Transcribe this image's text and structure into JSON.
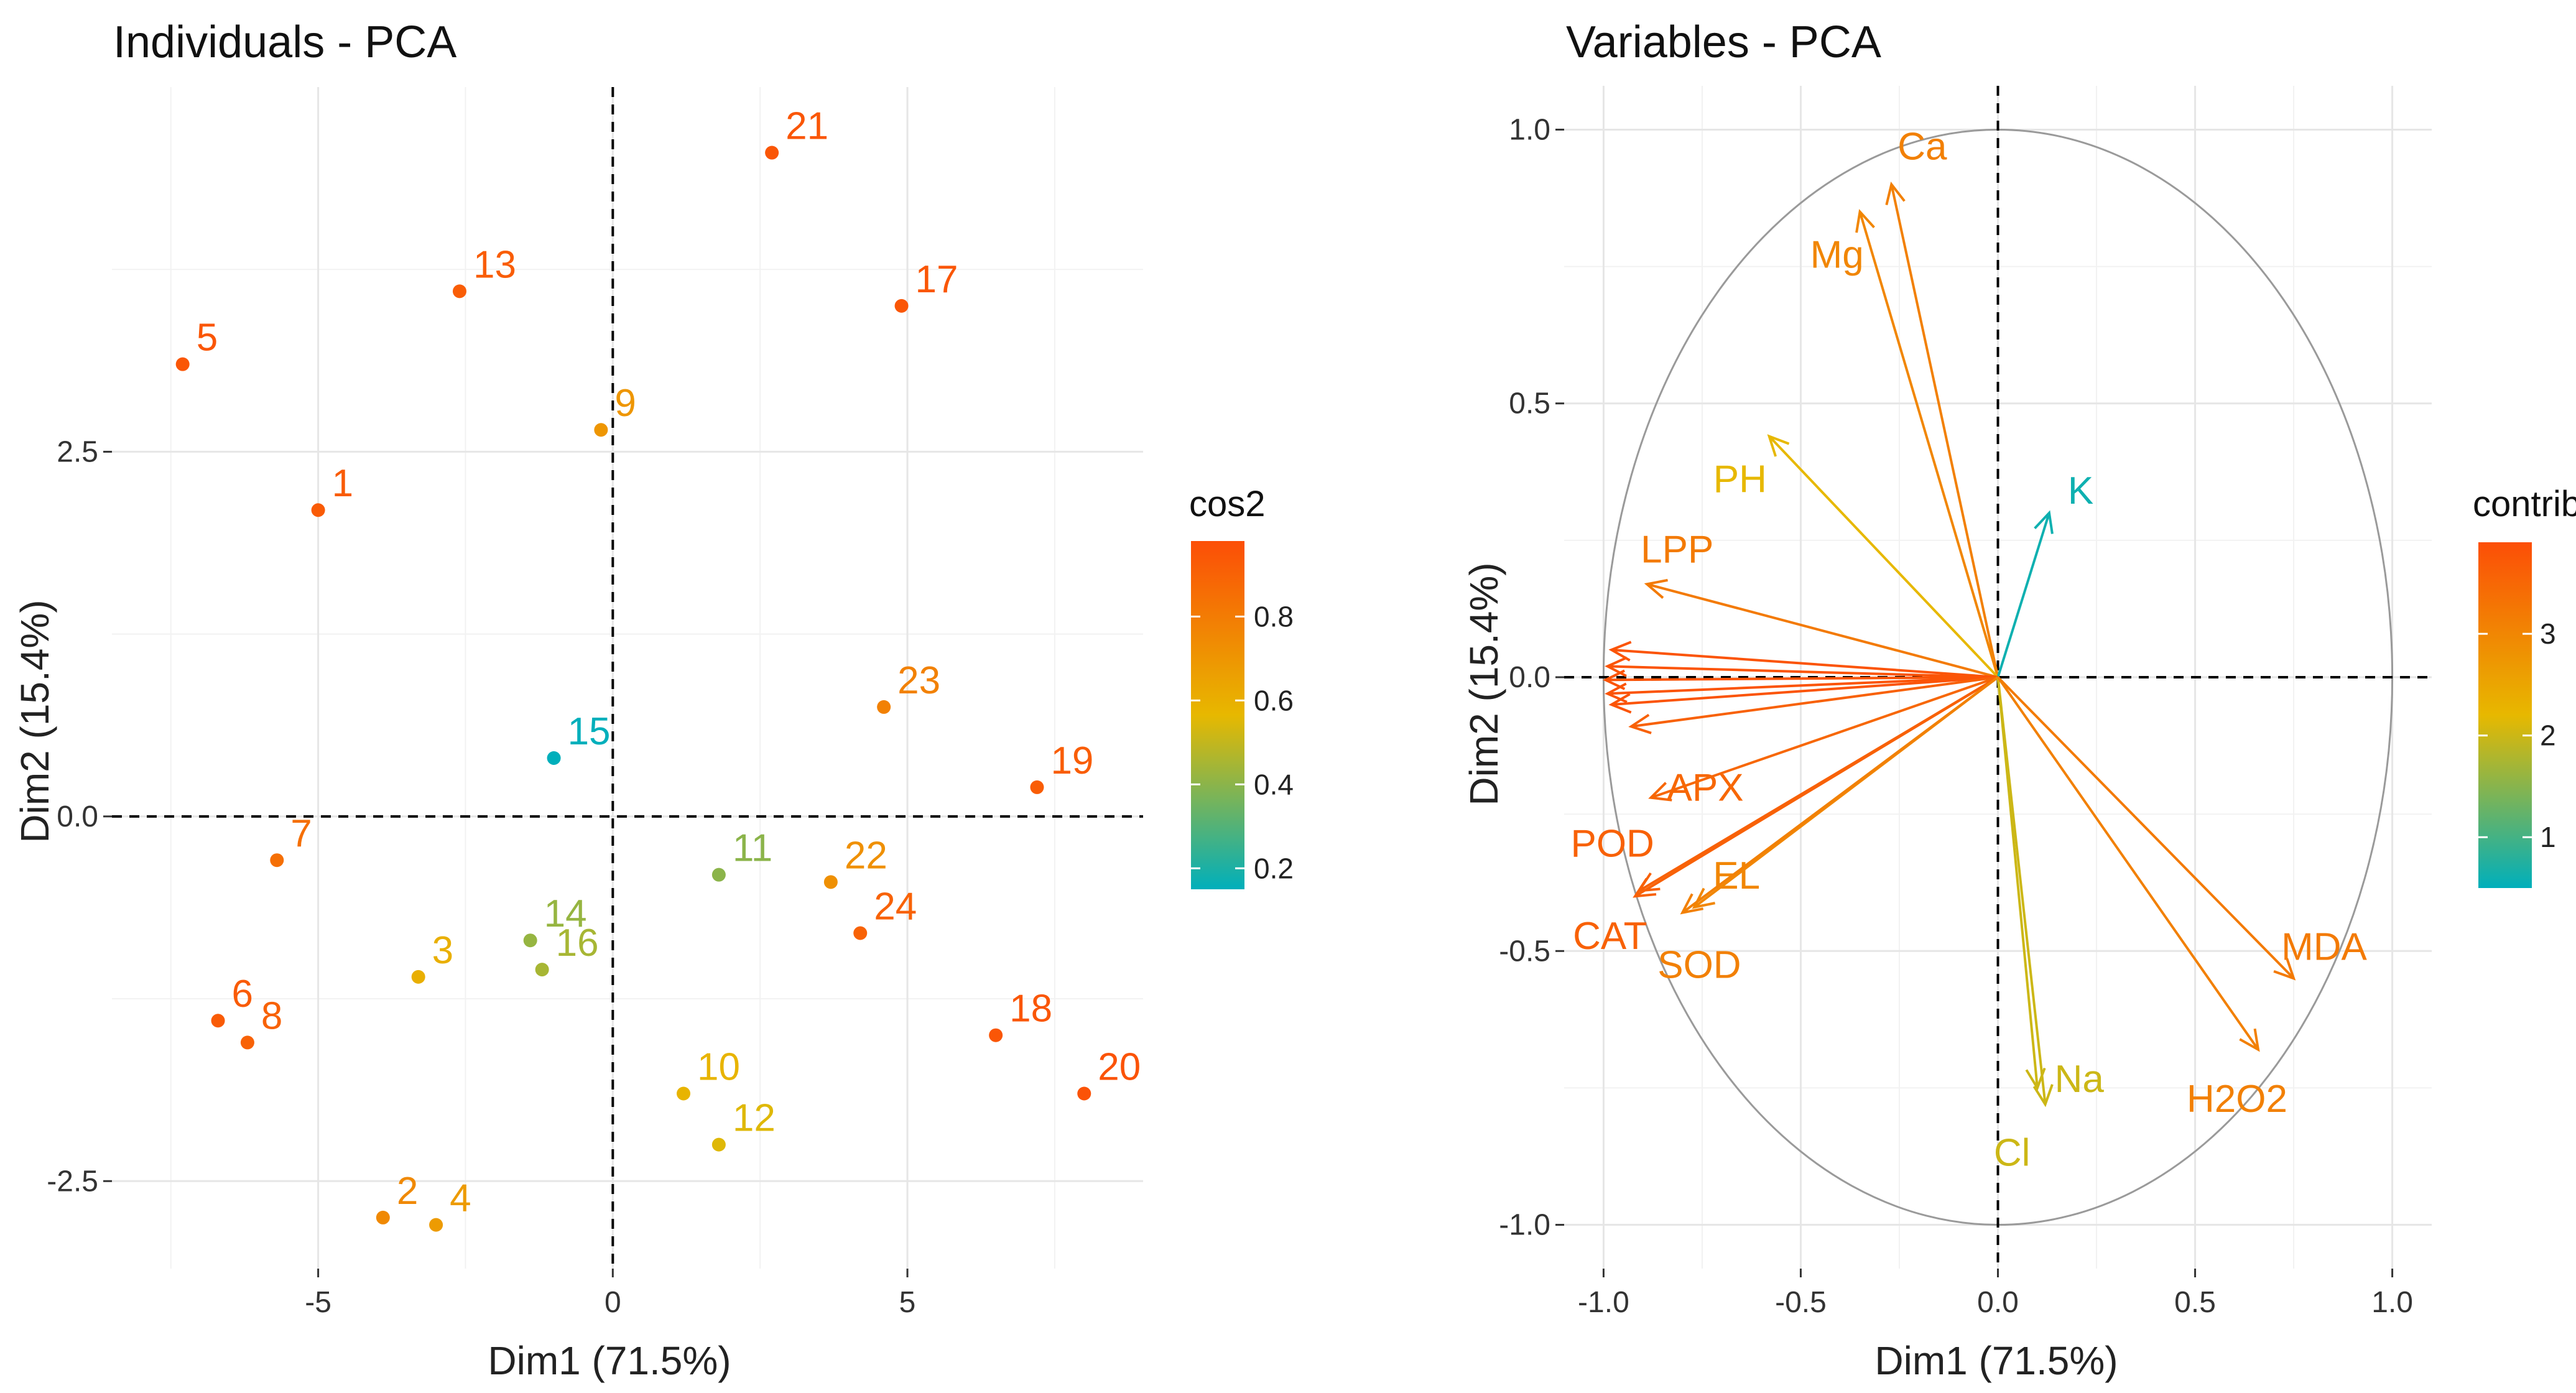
{
  "chart_data": [
    {
      "type": "scatter",
      "title": "Individuals - PCA",
      "xlabel": "Dim1 (71.5%)",
      "ylabel": "Dim2 (15.4%)",
      "xlim": [
        -8.5,
        9
      ],
      "ylim": [
        -3.1,
        5.0
      ],
      "xticks": [
        -5,
        0,
        5
      ],
      "yticks": [
        -2.5,
        0.0,
        2.5
      ],
      "xtick_labels": [
        "-5",
        "0",
        "5"
      ],
      "ytick_labels": [
        "-2.5",
        "0.0",
        "2.5"
      ],
      "grid": true,
      "color_by": "cos2",
      "legend": {
        "title": "cos2",
        "position": "right",
        "ticks": [
          0.8,
          0.6,
          0.4,
          0.2
        ],
        "tick_labels": [
          "0.8",
          "0.6",
          "0.4",
          "0.2"
        ],
        "range": [
          0.15,
          0.98
        ],
        "colors": [
          "#00AFBB",
          "#E7B800",
          "#FC4E07"
        ]
      },
      "points": [
        {
          "label": "1",
          "x": -5.0,
          "y": 2.1,
          "cos2": 0.93
        },
        {
          "label": "2",
          "x": -3.9,
          "y": -2.75,
          "cos2": 0.75
        },
        {
          "label": "3",
          "x": -3.3,
          "y": -1.1,
          "cos2": 0.6
        },
        {
          "label": "4",
          "x": -3.0,
          "y": -2.8,
          "cos2": 0.68
        },
        {
          "label": "5",
          "x": -7.3,
          "y": 3.1,
          "cos2": 0.95
        },
        {
          "label": "6",
          "x": -6.7,
          "y": -1.4,
          "cos2": 0.93
        },
        {
          "label": "7",
          "x": -5.7,
          "y": -0.3,
          "cos2": 0.85
        },
        {
          "label": "8",
          "x": -6.2,
          "y": -1.55,
          "cos2": 0.9
        },
        {
          "label": "9",
          "x": -0.2,
          "y": 2.65,
          "cos2": 0.7
        },
        {
          "label": "10",
          "x": 1.2,
          "y": -1.9,
          "cos2": 0.58
        },
        {
          "label": "11",
          "x": 1.8,
          "y": -0.4,
          "cos2": 0.4
        },
        {
          "label": "12",
          "x": 1.8,
          "y": -2.25,
          "cos2": 0.55
        },
        {
          "label": "13",
          "x": -2.6,
          "y": 3.6,
          "cos2": 0.92
        },
        {
          "label": "14",
          "x": -1.4,
          "y": -0.85,
          "cos2": 0.42
        },
        {
          "label": "15",
          "x": -1.0,
          "y": 0.4,
          "cos2": 0.15
        },
        {
          "label": "16",
          "x": -1.2,
          "y": -1.05,
          "cos2": 0.45
        },
        {
          "label": "17",
          "x": 4.9,
          "y": 3.5,
          "cos2": 0.95
        },
        {
          "label": "18",
          "x": 6.5,
          "y": -1.5,
          "cos2": 0.95
        },
        {
          "label": "19",
          "x": 7.2,
          "y": 0.2,
          "cos2": 0.92
        },
        {
          "label": "20",
          "x": 8.0,
          "y": -1.9,
          "cos2": 0.96
        },
        {
          "label": "21",
          "x": 2.7,
          "y": 4.55,
          "cos2": 0.95
        },
        {
          "label": "22",
          "x": 3.7,
          "y": -0.45,
          "cos2": 0.72
        },
        {
          "label": "23",
          "x": 4.6,
          "y": 0.75,
          "cos2": 0.78
        },
        {
          "label": "24",
          "x": 4.2,
          "y": -0.8,
          "cos2": 0.9
        }
      ]
    },
    {
      "type": "vector",
      "title": "Variables - PCA",
      "xlabel": "Dim1 (71.5%)",
      "ylabel": "Dim2 (15.4%)",
      "xlim": [
        -1.1,
        1.1
      ],
      "ylim": [
        -1.08,
        1.08
      ],
      "xticks": [
        -1.0,
        -0.5,
        0.0,
        0.5,
        1.0
      ],
      "yticks": [
        -1.0,
        -0.5,
        0.0,
        0.5,
        1.0
      ],
      "xtick_labels": [
        "-1.0",
        "-0.5",
        "0.0",
        "0.5",
        "1.0"
      ],
      "ytick_labels": [
        "-1.0",
        "-0.5",
        "0.0",
        "0.5",
        "1.0"
      ],
      "grid": true,
      "unit_circle": true,
      "color_by": "contrib",
      "legend": {
        "title": "contrib",
        "position": "right",
        "ticks": [
          3,
          2,
          1
        ],
        "tick_labels": [
          "3",
          "2",
          "1"
        ],
        "range": [
          0.5,
          3.9
        ],
        "colors": [
          "#00AFBB",
          "#E7B800",
          "#FC4E07"
        ]
      },
      "variables": [
        {
          "label": "Ca",
          "x": -0.27,
          "y": 0.9,
          "contrib": 3.1
        },
        {
          "label": "Mg",
          "x": -0.35,
          "y": 0.85,
          "contrib": 3.0
        },
        {
          "label": "PH",
          "x": -0.58,
          "y": 0.44,
          "contrib": 2.2
        },
        {
          "label": "K",
          "x": 0.13,
          "y": 0.3,
          "contrib": 0.6
        },
        {
          "label": "LPP",
          "x": -0.89,
          "y": 0.17,
          "contrib": 3.2
        },
        {
          "label": "",
          "x": -0.98,
          "y": 0.05,
          "contrib": 3.8
        },
        {
          "label": "",
          "x": -0.99,
          "y": 0.02,
          "contrib": 3.8
        },
        {
          "label": "",
          "x": -0.995,
          "y": -0.005,
          "contrib": 3.8
        },
        {
          "label": "",
          "x": -0.99,
          "y": -0.03,
          "contrib": 3.8
        },
        {
          "label": "",
          "x": -0.98,
          "y": -0.05,
          "contrib": 3.8
        },
        {
          "label": "",
          "x": -0.93,
          "y": -0.09,
          "contrib": 3.6
        },
        {
          "label": "APX",
          "x": -0.88,
          "y": -0.22,
          "contrib": 3.5
        },
        {
          "label": "POD",
          "x": -0.91,
          "y": -0.39,
          "contrib": 3.6
        },
        {
          "label": "CAT",
          "x": -0.92,
          "y": -0.4,
          "contrib": 3.6
        },
        {
          "label": "EL",
          "x": -0.77,
          "y": -0.42,
          "contrib": 3.0
        },
        {
          "label": "SOD",
          "x": -0.8,
          "y": -0.43,
          "contrib": 3.1
        },
        {
          "label": "Na",
          "x": 0.12,
          "y": -0.78,
          "contrib": 2.0
        },
        {
          "label": "Cl",
          "x": 0.1,
          "y": -0.75,
          "contrib": 2.0
        },
        {
          "label": "MDA",
          "x": 0.75,
          "y": -0.55,
          "contrib": 3.2
        },
        {
          "label": "H2O2",
          "x": 0.66,
          "y": -0.68,
          "contrib": 3.1
        }
      ]
    }
  ]
}
